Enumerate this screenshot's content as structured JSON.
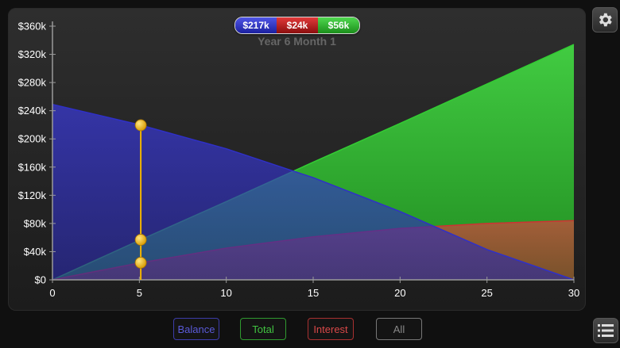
{
  "readout": {
    "balance": "$217k",
    "interest": "$24k",
    "total": "$56k",
    "time_label": "Year 6 Month 1"
  },
  "filters": {
    "balance": "Balance",
    "total": "Total",
    "interest": "Interest",
    "all": "All"
  },
  "icons": {
    "settings": "gear-icon",
    "list": "list-icon"
  },
  "colors": {
    "balance": "#2f30c8",
    "total": "#33cc33",
    "interest": "#cc3333",
    "cursor": "#f0b400"
  },
  "chart_data": {
    "type": "area",
    "x_ticks": [
      0,
      5,
      10,
      15,
      20,
      25,
      30
    ],
    "y_ticks": [
      "$0",
      "$40k",
      "$80k",
      "$120k",
      "$160k",
      "$200k",
      "$240k",
      "$280k",
      "$320k",
      "$360k"
    ],
    "xlim": [
      0,
      30
    ],
    "ylim": [
      0,
      360000
    ],
    "cursor_x": 5.08,
    "series": [
      {
        "name": "Balance",
        "x": [
          0,
          5,
          10,
          15,
          20,
          25,
          30
        ],
        "values": [
          249000,
          220000,
          186000,
          145000,
          97000,
          43000,
          0
        ]
      },
      {
        "name": "Total",
        "x": [
          0,
          5,
          10,
          15,
          20,
          25,
          30
        ],
        "values": [
          0,
          56000,
          111000,
          167000,
          222000,
          278000,
          334000
        ]
      },
      {
        "name": "Interest",
        "x": [
          0,
          5,
          10,
          15,
          20,
          25,
          30
        ],
        "values": [
          0,
          24000,
          45000,
          61000,
          73000,
          80000,
          84000
        ]
      }
    ]
  }
}
